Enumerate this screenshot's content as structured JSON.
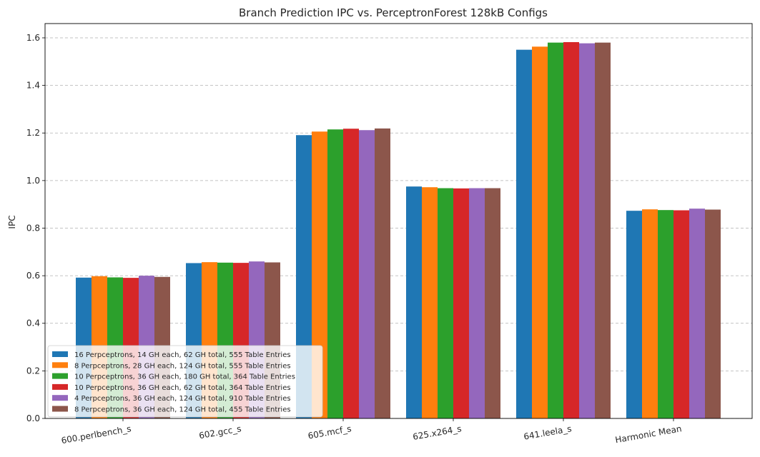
{
  "chart_data": {
    "type": "bar",
    "title": "Branch Prediction IPC vs. PerceptronForest 128kB Configs",
    "xlabel": "",
    "ylabel": "IPC",
    "ylim": [
      0,
      1.66
    ],
    "yticks": [
      "0.0",
      "0.2",
      "0.4",
      "0.6",
      "0.8",
      "1.0",
      "1.2",
      "1.4",
      "1.6"
    ],
    "grid": "horizontal dashed",
    "legend_position": "lower-left",
    "categories": [
      "600.perlbench_s",
      "602.gcc_s",
      "605.mcf_s",
      "625.x264_s",
      "641.leela_s",
      "Harmonic Mean"
    ],
    "series": [
      {
        "name": "16 Perpceptrons, 14 GH each, 62 GH total, 555 Table Entries",
        "color": "#1f77b4",
        "values": [
          0.592,
          0.653,
          1.191,
          0.975,
          1.55,
          0.873
        ]
      },
      {
        "name": "8 Perpceptrons, 28 GH each, 124 GH total, 555 Table Entries",
        "color": "#ff7f0e",
        "values": [
          0.598,
          0.657,
          1.206,
          0.972,
          1.563,
          0.879
        ]
      },
      {
        "name": "10 Perpceptrons, 36 GH each, 180 GH total, 364 Table Entries",
        "color": "#2ca02c",
        "values": [
          0.593,
          0.655,
          1.215,
          0.968,
          1.58,
          0.876
        ]
      },
      {
        "name": "10 Perpceptrons, 36 GH each, 62 GH total, 364 Table Entries",
        "color": "#d62728",
        "values": [
          0.591,
          0.654,
          1.218,
          0.967,
          1.582,
          0.875
        ]
      },
      {
        "name": "4 Perpceptrons, 36 GH each, 124 GH total, 910 Table Entries",
        "color": "#9467bd",
        "values": [
          0.6,
          0.66,
          1.212,
          0.968,
          1.577,
          0.882
        ]
      },
      {
        "name": "8 Perpceptrons, 36 GH each, 124 GH total, 455 Table Entries",
        "color": "#8c564b",
        "values": [
          0.595,
          0.656,
          1.219,
          0.968,
          1.58,
          0.878
        ]
      }
    ]
  }
}
